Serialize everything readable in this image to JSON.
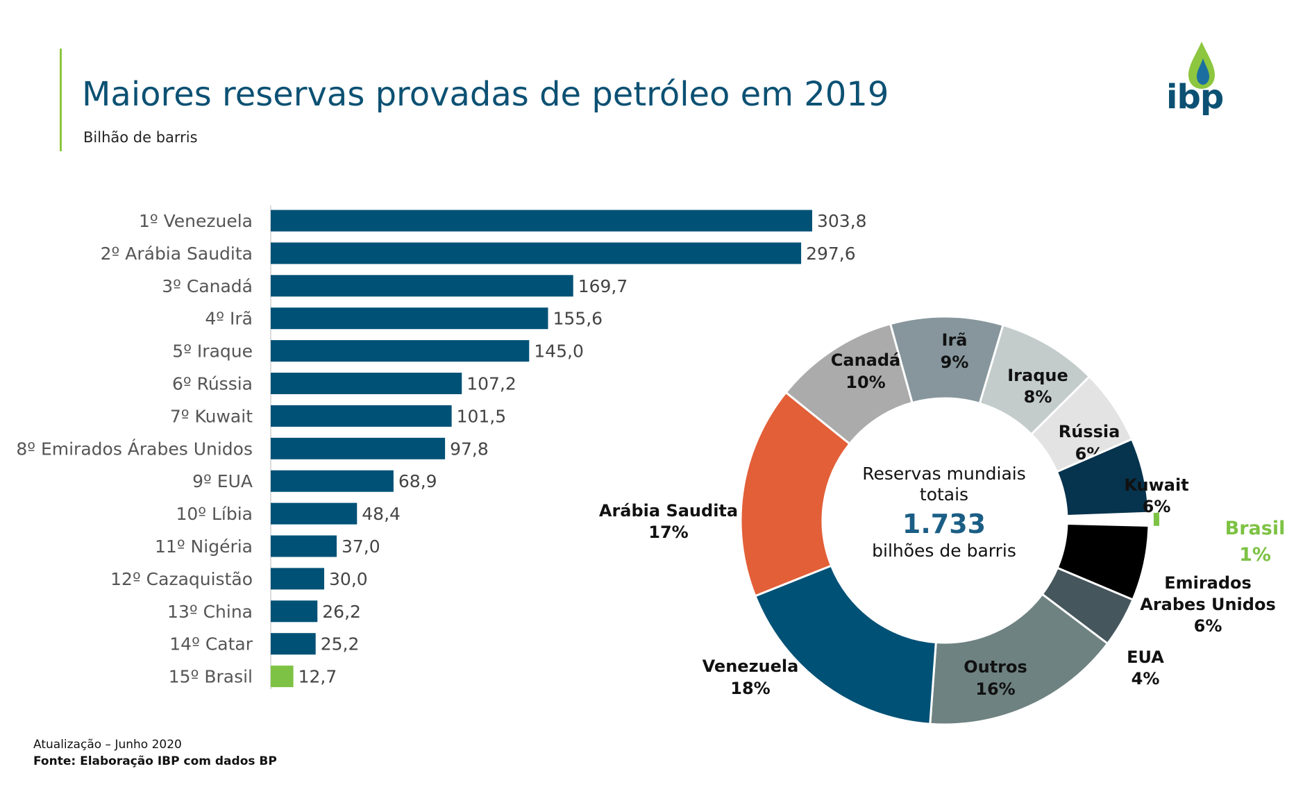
{
  "header": {
    "title": "Maiores reservas provadas de petróleo em 2019",
    "subtitle": "Bilhão de barris",
    "logo_text": "ibp"
  },
  "footer": {
    "line1": "Atualização – Junho 2020",
    "line2": "Fonte: Elaboração IBP com dados BP"
  },
  "colors": {
    "bar": "#005176",
    "highlight": "#7dc244",
    "title": "#0c5173"
  },
  "chart_data": [
    {
      "type": "bar",
      "orientation": "horizontal",
      "categories": [
        "1º Venezuela",
        "2º Arábia Saudita",
        "3º Canadá",
        "4º Irã",
        "5º Iraque",
        "6º Rússia",
        "7º Kuwait",
        "8º Emirados Árabes Unidos",
        "9º EUA",
        "10º Líbia",
        "11º Nigéria",
        "12º Cazaquistão",
        "13º China",
        "14º Catar",
        "15º Brasil"
      ],
      "values": [
        303.8,
        297.6,
        169.7,
        155.6,
        145.0,
        107.2,
        101.5,
        97.8,
        68.9,
        48.4,
        37.0,
        30.0,
        26.2,
        25.2,
        12.7
      ],
      "value_labels": [
        "303,8",
        "297,6",
        "169,7",
        "155,6",
        "145,0",
        "107,2",
        "101,5",
        "97,8",
        "68,9",
        "48,4",
        "37,0",
        "30,0",
        "26,2",
        "25,2",
        "12,7"
      ],
      "highlight": "15º Brasil",
      "xlim": [
        0,
        303.8
      ]
    },
    {
      "type": "pie",
      "variant": "donut",
      "center_text": [
        "Reservas mundiais",
        "totais",
        "1.733",
        "bilhões de barris"
      ],
      "slices": [
        {
          "label": "Irã",
          "pct_label": "9%",
          "value": 9,
          "color": "#86969c"
        },
        {
          "label": "Iraque",
          "pct_label": "8%",
          "value": 8,
          "color": "#c3cccb"
        },
        {
          "label": "Rússia",
          "pct_label": "6%",
          "value": 6,
          "color": "#e3e3e3"
        },
        {
          "label": "Kuwait",
          "pct_label": "6%",
          "value": 6,
          "color": "#06334d"
        },
        {
          "label": "Brasil",
          "pct_label": "1%",
          "value": 1,
          "color": "#7dc244",
          "exploded": true
        },
        {
          "label": "Emirados Arabes Unidos",
          "pct_label": "6%",
          "value": 6,
          "color": "#000000"
        },
        {
          "label": "EUA",
          "pct_label": "4%",
          "value": 4,
          "color": "#46565d"
        },
        {
          "label": "Outros",
          "pct_label": "16%",
          "value": 16,
          "color": "#6e8281"
        },
        {
          "label": "Venezuela",
          "pct_label": "18%",
          "value": 18,
          "color": "#005176"
        },
        {
          "label": "Arábia Saudita",
          "pct_label": "17%",
          "value": 17,
          "color": "#e25f38"
        },
        {
          "label": "Canadá",
          "pct_label": "10%",
          "value": 10,
          "color": "#ababab"
        }
      ]
    }
  ]
}
